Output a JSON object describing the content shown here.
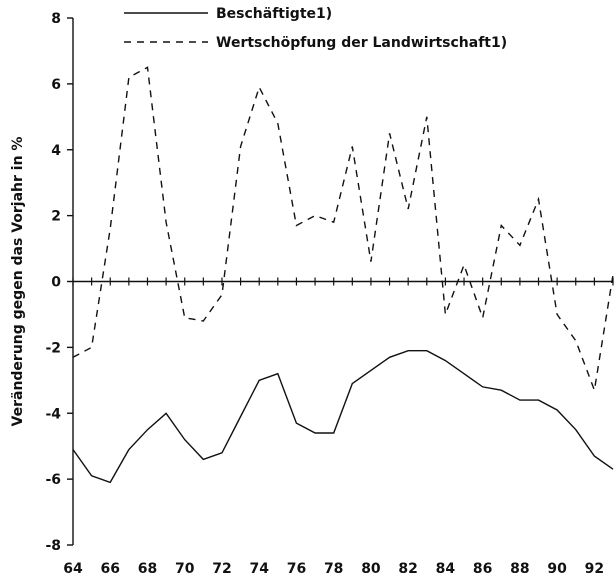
{
  "chart_data": {
    "type": "line",
    "title": "",
    "xlabel": "",
    "ylabel": "Veränderung gegen das Vorjahr in %",
    "xlim": [
      64,
      93
    ],
    "ylim": [
      -8,
      8
    ],
    "x_ticks": [
      "64",
      "66",
      "68",
      "70",
      "72",
      "74",
      "76",
      "78",
      "80",
      "82",
      "84",
      "86",
      "88",
      "90",
      "92"
    ],
    "y_ticks": [
      "8",
      "6",
      "4",
      "2",
      "0",
      "-2",
      "-4",
      "-6",
      "-8"
    ],
    "grid": false,
    "legend_position": "top",
    "x": [
      64,
      65,
      66,
      67,
      68,
      69,
      70,
      71,
      72,
      73,
      74,
      75,
      76,
      77,
      78,
      79,
      80,
      81,
      82,
      83,
      84,
      85,
      86,
      87,
      88,
      89,
      90,
      91,
      92,
      93
    ],
    "series": [
      {
        "name": "Beschäftigte1)",
        "style": "solid",
        "values": [
          -5.1,
          -5.9,
          -6.1,
          -5.1,
          -4.5,
          -4.0,
          -4.8,
          -5.4,
          -5.2,
          -4.1,
          -3.0,
          -2.8,
          -4.3,
          -4.6,
          -4.6,
          -3.1,
          -2.7,
          -2.3,
          -2.1,
          -2.1,
          -2.4,
          -2.8,
          -3.2,
          -3.3,
          -3.6,
          -3.6,
          -3.9,
          -4.5,
          -5.3,
          -5.7
        ]
      },
      {
        "name": "Wertschöpfung der Landwirtschaft1)",
        "style": "dashed",
        "values": [
          -2.3,
          -2.0,
          1.6,
          6.2,
          6.5,
          1.8,
          -1.1,
          -1.2,
          -0.4,
          4.1,
          5.9,
          4.8,
          1.7,
          2.0,
          1.8,
          4.1,
          0.6,
          4.5,
          2.2,
          5.0,
          -1.0,
          0.5,
          -1.1,
          1.7,
          1.1,
          2.5,
          -1.0,
          -1.8,
          -3.3,
          0.2
        ]
      }
    ]
  }
}
